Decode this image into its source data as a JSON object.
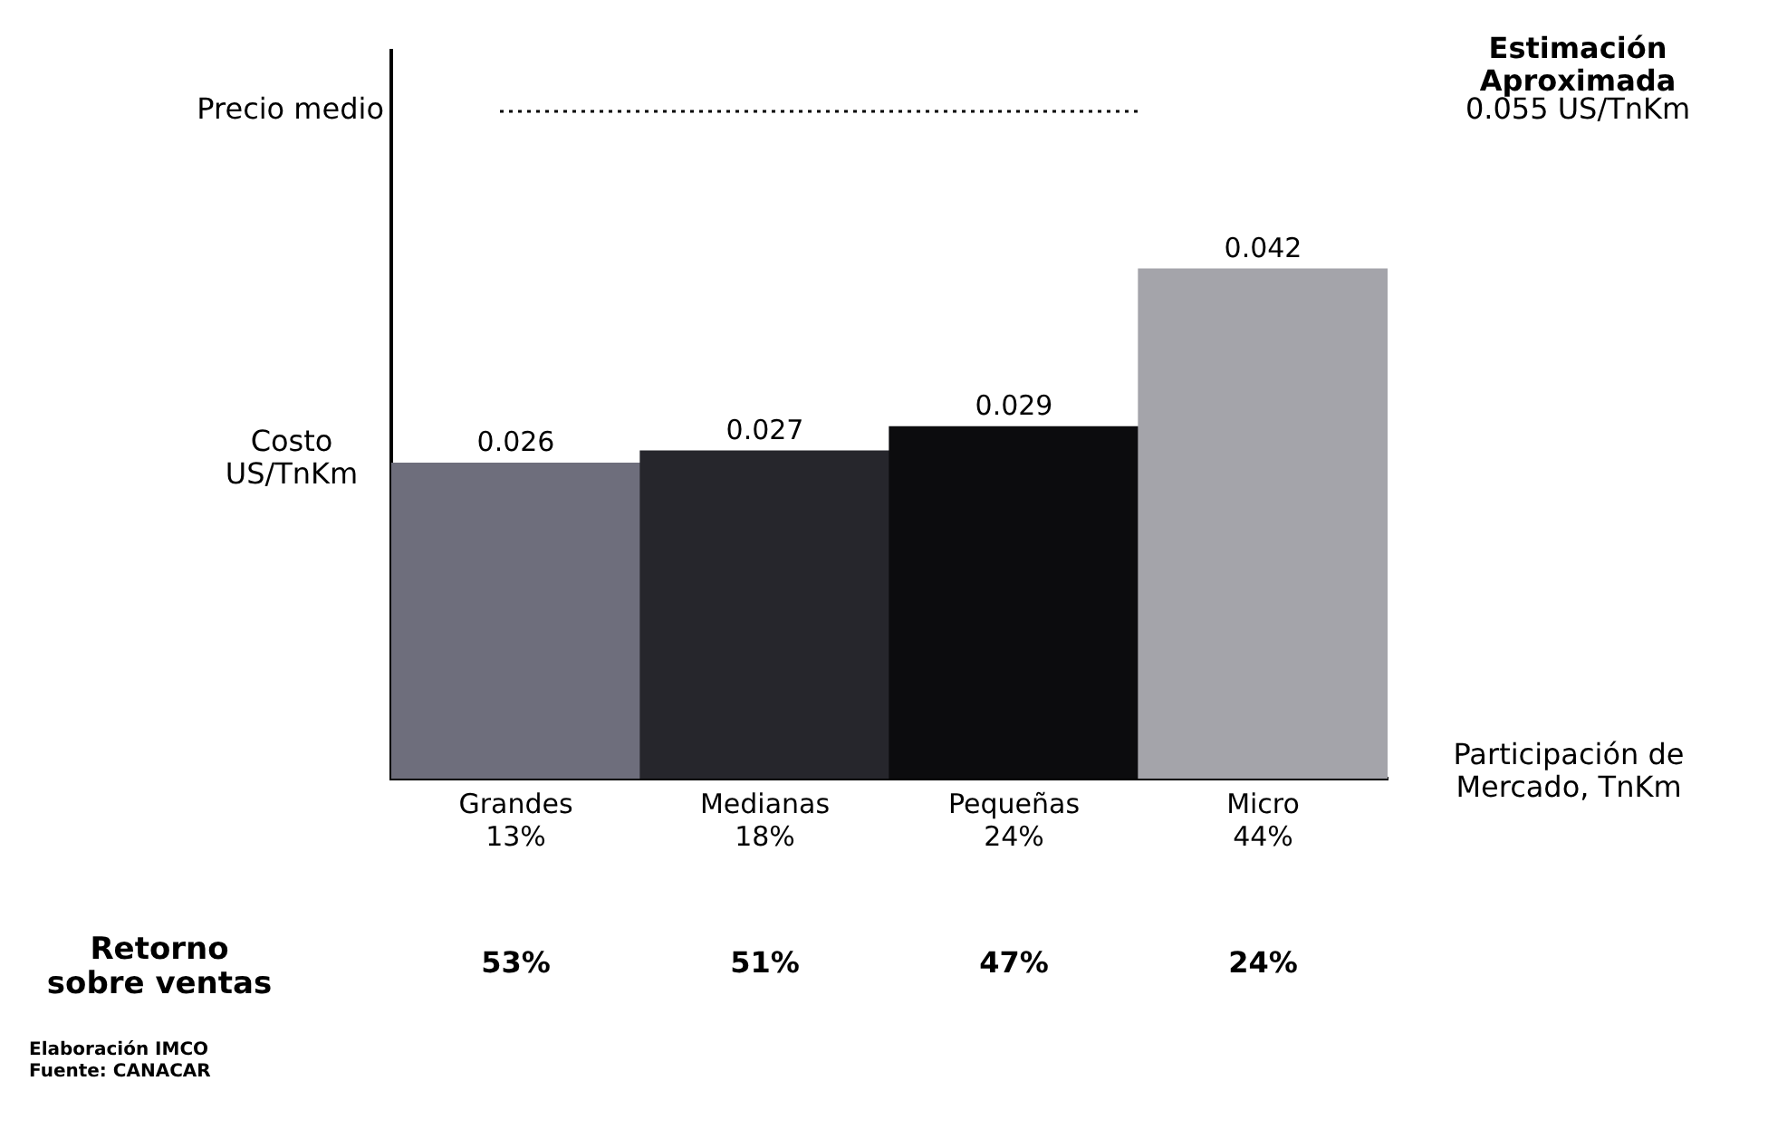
{
  "chart_data": {
    "type": "bar",
    "xlabel": "Participación de\nMercado, TnKm",
    "ylabel": "Costo\nUS/TnKm",
    "categories": [
      "Grandes\n13%",
      "Medianas\n18%",
      "Pequeñas\n24%",
      "Micro\n44%"
    ],
    "values": [
      0.026,
      0.027,
      0.029,
      0.042
    ],
    "colors": [
      "#6e6e7c",
      "#26262c",
      "#0c0c0e",
      "#a4a4aa"
    ],
    "ylim": [
      0,
      0.06
    ],
    "tick_labels": "x",
    "grid": false,
    "legend": false,
    "data_labels": true,
    "ref_lines": [
      {
        "axis": "y",
        "value": 0.055,
        "label": "Precio medio",
        "line_style": "dotted",
        "color": "#000000"
      }
    ],
    "annotations": [
      "Estimación\nAproximada",
      "0.055 US/TnKm",
      "Retorno\nsobre ventas",
      "53%",
      "51%",
      "47%",
      "24%",
      "Elaboración IMCO",
      "Fuente: CANACAR"
    ]
  }
}
